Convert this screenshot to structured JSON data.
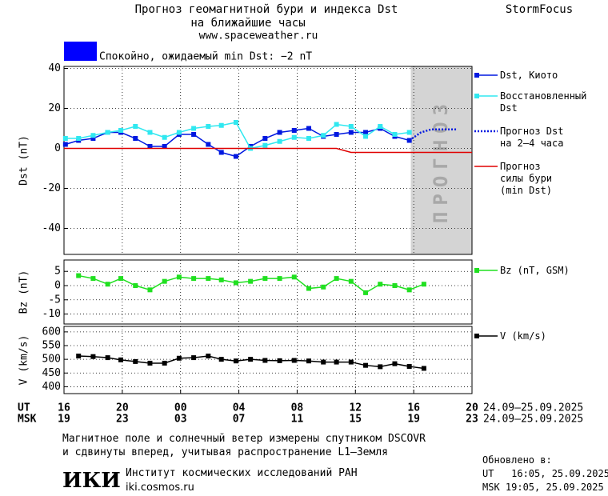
{
  "header": {
    "title": "Прогноз геомагнитной бури и индекса Dst",
    "subtitle": "на ближайшие часы",
    "url": "www.spaceweather.ru",
    "brand": "StormFocus"
  },
  "status": {
    "color": "#0000ff",
    "text": "Спокойно, ожидаемый min Dst: −2 nT"
  },
  "chart_data": [
    {
      "type": "line",
      "ylabel": "Dst (nT)",
      "xlim": [
        0,
        28
      ],
      "ylim": [
        -53,
        41
      ],
      "yticks": [
        -40,
        -20,
        0,
        20,
        40
      ],
      "grid": true,
      "forecast": {
        "label": "ПРОГНОЗ",
        "x": [
          23.8,
          28
        ]
      },
      "series": [
        {
          "name": "Dst, Киото",
          "color": "#0018e0",
          "marker": "square",
          "x": [
            0.1,
            1.0,
            2.0,
            3.0,
            3.9,
            4.9,
            5.9,
            6.9,
            7.9,
            8.9,
            9.9,
            10.8,
            11.8,
            12.8,
            13.8,
            14.8,
            15.8,
            16.8,
            17.8,
            18.7,
            19.7,
            20.7,
            21.7,
            22.7,
            23.7
          ],
          "values": [
            2,
            4,
            5,
            8,
            8,
            5,
            1,
            1,
            7,
            7,
            2,
            -2,
            -4,
            1,
            5,
            8,
            9,
            10,
            6,
            7,
            8,
            8,
            10,
            6,
            4
          ]
        },
        {
          "name": "Восстановленный Dst",
          "color": "#30e8f0",
          "marker": "square",
          "x": [
            0.1,
            1.0,
            2.0,
            3.0,
            3.9,
            4.9,
            5.9,
            6.9,
            7.9,
            8.9,
            9.9,
            10.8,
            11.8,
            12.8,
            13.8,
            14.8,
            15.8,
            16.8,
            17.8,
            18.7,
            19.7,
            20.7,
            21.7,
            22.7,
            23.7
          ],
          "values": [
            5,
            5,
            6.5,
            8,
            9,
            11,
            8,
            5.5,
            8,
            10,
            11,
            11.5,
            13,
            0,
            1.5,
            3.5,
            5.5,
            5,
            6.5,
            12,
            11,
            6,
            11,
            7,
            8
          ]
        },
        {
          "name": "Прогноз Dst на 2–4 часа",
          "color": "#0018e0",
          "dash": "dotted",
          "x": [
            23.7,
            24.5,
            25.2,
            26,
            27
          ],
          "values": [
            4,
            8,
            9.5,
            9.5,
            9.5
          ]
        },
        {
          "name": "Прогноз силы бури (min Dst)",
          "color": "#e00000",
          "x": [
            0,
            18.7,
            19.7,
            28
          ],
          "values": [
            0,
            0,
            -2,
            -2
          ]
        }
      ]
    },
    {
      "type": "line",
      "ylabel": "Bz (nT)",
      "xlim": [
        0,
        28
      ],
      "ylim": [
        -13.5,
        9
      ],
      "yticks": [
        -10,
        -5,
        0,
        5
      ],
      "grid": true,
      "series": [
        {
          "name": "Bz (nT, GSM)",
          "color": "#20e020",
          "marker": "square",
          "x": [
            1.0,
            2.0,
            3.0,
            3.9,
            4.9,
            5.9,
            6.9,
            7.9,
            8.9,
            9.9,
            10.8,
            11.8,
            12.8,
            13.8,
            14.8,
            15.8,
            16.8,
            17.8,
            18.7,
            19.7,
            20.7,
            21.7,
            22.7,
            23.7,
            24.7
          ],
          "values": [
            3.5,
            2.5,
            0.5,
            2.5,
            0,
            -1.5,
            1.5,
            3,
            2.5,
            2.5,
            2,
            1,
            1.5,
            2.5,
            2.5,
            3,
            -1,
            -0.5,
            2.5,
            1.5,
            -2.5,
            0.5,
            0,
            -1.5,
            0.5
          ]
        }
      ]
    },
    {
      "type": "line",
      "ylabel": "V (km/s)",
      "xlim": [
        0,
        28
      ],
      "ylim": [
        375,
        620
      ],
      "yticks": [
        400,
        450,
        500,
        550,
        600
      ],
      "grid": true,
      "xticks": [
        {
          "value": 0,
          "label": "16"
        },
        {
          "value": 4,
          "label": "20"
        },
        {
          "value": 8,
          "label": "00"
        },
        {
          "value": 12,
          "label": "04"
        },
        {
          "value": 16,
          "label": "08"
        },
        {
          "value": 20,
          "label": "12"
        },
        {
          "value": 24,
          "label": "16"
        },
        {
          "value": 28,
          "label": "20"
        }
      ],
      "msk_ticks": [
        {
          "value": 0,
          "label": "19"
        },
        {
          "value": 4,
          "label": "23"
        },
        {
          "value": 8,
          "label": "03"
        },
        {
          "value": 12,
          "label": "07"
        },
        {
          "value": 16,
          "label": "11"
        },
        {
          "value": 20,
          "label": "15"
        },
        {
          "value": 24,
          "label": "19"
        },
        {
          "value": 28,
          "label": "23"
        }
      ],
      "ut_label": "UT",
      "msk_label": "MSK",
      "ut_dates": "24.09–25.09.2025",
      "msk_dates": "24.09–25.09.2025",
      "series": [
        {
          "name": "V (km/s)",
          "color": "#000000",
          "marker": "square",
          "x": [
            1.0,
            2.0,
            3.0,
            3.9,
            4.9,
            5.9,
            6.9,
            7.9,
            8.9,
            9.9,
            10.8,
            11.8,
            12.8,
            13.8,
            14.8,
            15.8,
            16.8,
            17.8,
            18.7,
            19.7,
            20.7,
            21.7,
            22.7,
            23.7,
            24.7
          ],
          "values": [
            512,
            510,
            506,
            498,
            492,
            486,
            486,
            504,
            506,
            512,
            500,
            494,
            500,
            496,
            495,
            496,
            494,
            490,
            490,
            490,
            478,
            473,
            484,
            474,
            467
          ]
        }
      ]
    }
  ],
  "footer": {
    "note1": "Магнитное поле и солнечный ветер измерены спутником DSCOVR",
    "note2": "и сдвинуты вперед, учитывая распространение L1–Земля",
    "logo": "ИКИ",
    "institute": "Институт космических исследований РАН",
    "site": "iki.cosmos.ru",
    "updated": "Обновлено в:",
    "ut_time": "UT   16:05, 25.09.2025",
    "msk_time": "MSK 19:05, 25.09.2025"
  }
}
